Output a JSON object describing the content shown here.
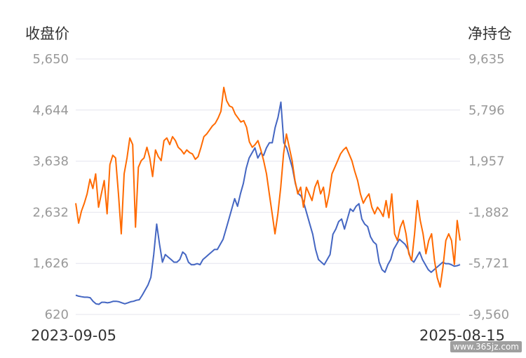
{
  "chart_data": {
    "type": "line",
    "left_axis_title": "收盘价",
    "right_axis_title": "净持仓",
    "left_ticks": [
      "5,650",
      "4,644",
      "3,638",
      "2,632",
      "1,626",
      "620"
    ],
    "right_ticks": [
      "9,635",
      "5,796",
      "1,957",
      "-1,882",
      "-5,721",
      "-9,560"
    ],
    "left_ylim": [
      620,
      5650
    ],
    "right_ylim": [
      -9560,
      9635
    ],
    "x_start_label": "2023-09-05",
    "x_end_label": "2025-08-15",
    "grid": true,
    "series": [
      {
        "color": "#4466c2",
        "axis": "left",
        "values": [
          1000,
          980,
          970,
          960,
          960,
          950,
          880,
          830,
          820,
          860,
          860,
          850,
          860,
          880,
          880,
          870,
          850,
          830,
          850,
          870,
          880,
          900,
          910,
          1000,
          1100,
          1200,
          1350,
          1800,
          2400,
          2000,
          1650,
          1800,
          1750,
          1700,
          1650,
          1650,
          1700,
          1850,
          1800,
          1650,
          1600,
          1600,
          1620,
          1600,
          1700,
          1750,
          1800,
          1850,
          1900,
          1900,
          2000,
          2100,
          2300,
          2500,
          2700,
          2900,
          2750,
          3000,
          3200,
          3500,
          3700,
          3800,
          3900,
          3700,
          3800,
          3750,
          3900,
          4000,
          4000,
          4300,
          4500,
          4800,
          4000,
          3900,
          3700,
          3500,
          3200,
          3000,
          2950,
          2800,
          2600,
          2400,
          2200,
          1900,
          1700,
          1650,
          1600,
          1700,
          1800,
          2200,
          2300,
          2450,
          2500,
          2300,
          2500,
          2700,
          2650,
          2750,
          2800,
          2500,
          2400,
          2350,
          2150,
          2050,
          2000,
          1650,
          1500,
          1450,
          1600,
          1700,
          1900,
          2000,
          2100,
          2050,
          2000,
          1900,
          1700,
          1650,
          1750,
          1850,
          1700,
          1600,
          1500,
          1450,
          1500,
          1550,
          1600,
          1650,
          1620,
          1620,
          1600,
          1570,
          1580,
          1600
        ]
      },
      {
        "color": "#ff6a00",
        "axis": "right",
        "values": [
          -1200,
          -2700,
          -1800,
          -1200,
          -500,
          600,
          -100,
          1000,
          -1500,
          -500,
          500,
          -2000,
          1700,
          2400,
          2200,
          -500,
          -3500,
          1000,
          2200,
          3700,
          3200,
          -3000,
          1500,
          2000,
          2200,
          3000,
          2200,
          800,
          2800,
          2300,
          2000,
          3500,
          3700,
          3200,
          3800,
          3500,
          3000,
          2800,
          2500,
          2800,
          2600,
          2500,
          2100,
          2300,
          3000,
          3800,
          4000,
          4300,
          4600,
          4800,
          5200,
          5700,
          7500,
          6500,
          6100,
          6000,
          5500,
          5200,
          4900,
          5000,
          4500,
          3400,
          3000,
          3200,
          3500,
          2800,
          2000,
          1000,
          -500,
          -2000,
          -3500,
          -2000,
          0,
          2500,
          4000,
          3000,
          2000,
          500,
          -500,
          0,
          -1500,
          0,
          -500,
          -1000,
          0,
          500,
          -500,
          0,
          -1500,
          -500,
          1000,
          1500,
          2000,
          2500,
          2800,
          3000,
          2500,
          2000,
          1200,
          500,
          -500,
          -1200,
          -800,
          -500,
          -1500,
          -2000,
          -1500,
          -1800,
          -2200,
          -1000,
          -2300,
          -500,
          -3500,
          -4000,
          -3000,
          -2500,
          -3500,
          -5000,
          -5500,
          -3500,
          -1000,
          -2500,
          -3500,
          -5000,
          -4000,
          -3500,
          -5500,
          -6800,
          -7500,
          -6000,
          -4000,
          -3500,
          -4000,
          -5800,
          -2500,
          -4000
        ]
      }
    ]
  }
}
